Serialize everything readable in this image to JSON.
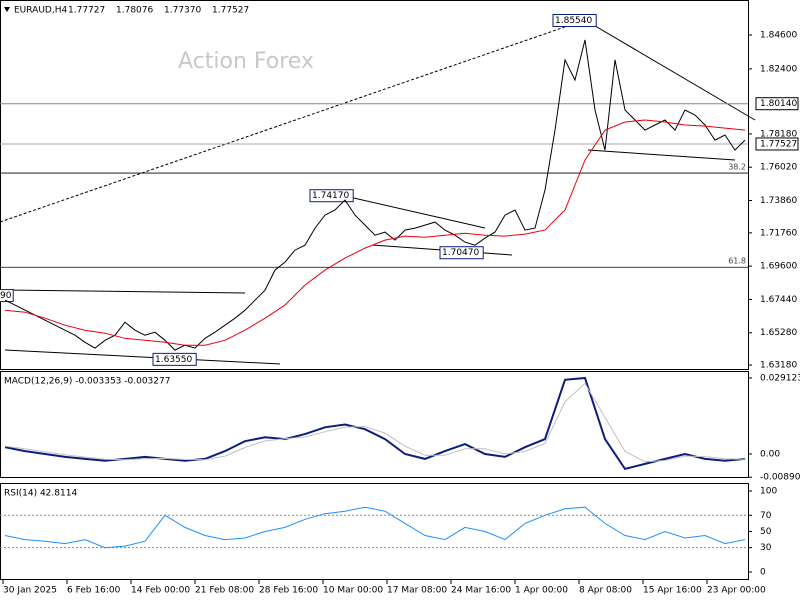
{
  "header": {
    "symbol": "EURAUD,H4",
    "ohlc": [
      "1.77727",
      "1.78076",
      "1.77370",
      "1.77527"
    ]
  },
  "watermark": "Action Forex",
  "x_axis": {
    "labels": [
      "30 Jan 2025",
      "6 Feb 16:00",
      "14 Feb 00:00",
      "21 Feb 08:00",
      "28 Feb 16:00",
      "10 Mar 00:00",
      "17 Mar 08:00",
      "24 Mar 16:00",
      "1 Apr 00:00",
      "8 Apr 08:00",
      "15 Apr 16:00",
      "23 Apr 00:00"
    ]
  },
  "chart_data": [
    {
      "type": "line",
      "ylim": [
        1.6286,
        1.8687
      ],
      "yticks": [
        {
          "value": 1.846,
          "label": "1.84600"
        },
        {
          "value": 1.824,
          "label": "1.82400"
        },
        {
          "value": 1.7818,
          "label": "1.78180"
        },
        {
          "value": 1.7602,
          "label": "1.76020"
        },
        {
          "value": 1.7386,
          "label": "1.73860"
        },
        {
          "value": 1.7176,
          "label": "1.71760"
        },
        {
          "value": 1.696,
          "label": "1.69600"
        },
        {
          "value": 1.6744,
          "label": "1.67440"
        },
        {
          "value": 1.6528,
          "label": "1.65280"
        },
        {
          "value": 1.6318,
          "label": "1.63180"
        }
      ],
      "price_lines": [
        {
          "value": 1.8014,
          "label": "1.80140",
          "color": "#888888"
        },
        {
          "value": 1.77527,
          "label": "1.77527",
          "color": "#aaaaaa"
        }
      ],
      "levels": [
        {
          "value": 1.7564,
          "label": "38.2"
        },
        {
          "value": 1.6953,
          "label": "61.8"
        }
      ],
      "annotations": [
        {
          "value": 1.8554,
          "label": "1.85540"
        },
        {
          "value": 1.7417,
          "label": "1.74170"
        },
        {
          "value": 1.7047,
          "label": "1.70470"
        },
        {
          "value": 1.6355,
          "label": "1.63550"
        },
        {
          "value": 1.6769,
          "label": "90"
        }
      ],
      "series": [
        {
          "color": "#000000",
          "values": [
            1.6739,
            1.6707,
            1.6674,
            1.6642,
            1.6609,
            1.6577,
            1.6544,
            1.6512,
            1.6466,
            1.6428,
            1.6479,
            1.6512,
            1.6596,
            1.6544,
            1.6512,
            1.6531,
            1.6479,
            1.6415,
            1.6447,
            1.6428,
            1.6492,
            1.6531,
            1.6577,
            1.6622,
            1.6674,
            1.6739,
            1.6804,
            1.6934,
            1.6986,
            1.7064,
            1.7096,
            1.7207,
            1.7291,
            1.7324,
            1.7389,
            1.7291,
            1.7226,
            1.7161,
            1.7181,
            1.7129,
            1.7194,
            1.7207,
            1.7226,
            1.7246,
            1.7194,
            1.7161,
            1.7116,
            1.7096,
            1.7142,
            1.7181,
            1.7291,
            1.7324,
            1.7194,
            1.7207,
            1.7454,
            1.7843,
            1.8298,
            1.8168,
            1.8428,
            1.7973,
            1.7713,
            1.8298,
            1.7973,
            1.7908,
            1.7843,
            1.7876,
            1.7908,
            1.7843,
            1.7973,
            1.7941,
            1.7876,
            1.7778,
            1.7811,
            1.7713,
            1.7778
          ]
        },
        {
          "color": "#e8000b",
          "values": [
            1.6674,
            1.6661,
            1.6622,
            1.6577,
            1.6544,
            1.6525,
            1.6492,
            1.6479,
            1.6466,
            1.6447,
            1.6447,
            1.6479,
            1.6544,
            1.6622,
            1.6707,
            1.6837,
            1.6934,
            1.7012,
            1.7077,
            1.7129,
            1.7155,
            1.7148,
            1.7161,
            1.7174,
            1.7161,
            1.7155,
            1.7168,
            1.7194,
            1.7324,
            1.7648,
            1.7843,
            1.7895,
            1.7908,
            1.7895,
            1.7876,
            1.7869,
            1.7856,
            1.7843
          ]
        }
      ]
    },
    {
      "type": "line",
      "title": "MACD(12,26,9) -0.003353 -0.003277",
      "ylim": [
        -0.0092,
        0.0314
      ],
      "yticks": [
        0.029123,
        {
          "value": 0,
          "label": "0.00"
        },
        -0.008901
      ],
      "series": [
        {
          "color": "#0a1e7a",
          "values": [
            0.0026,
            0.0011,
            0,
            -0.0011,
            -0.0019,
            -0.0026,
            -0.0019,
            -0.0011,
            -0.0019,
            -0.0026,
            -0.0019,
            0.0011,
            0.0049,
            0.0064,
            0.0057,
            0.0076,
            0.0102,
            0.0113,
            0.0095,
            0.0057,
            0,
            -0.0019,
            0.0011,
            0.0038,
            0,
            -0.0011,
            0.0026,
            0.0057,
            0.0284,
            0.0291,
            0.0057,
            -0.0057,
            -0.0038,
            -0.0019,
            0,
            -0.0019,
            -0.0026,
            -0.0019
          ]
        },
        {
          "color": "#c0c0c0",
          "values": [
            0.003,
            0.002,
            0.0008,
            -0.0003,
            -0.0012,
            -0.002,
            -0.0022,
            -0.0018,
            -0.0017,
            -0.0021,
            -0.0022,
            -0.0008,
            0.0025,
            0.005,
            0.0058,
            0.0065,
            0.0085,
            0.0103,
            0.0105,
            0.008,
            0.003,
            -0.0005,
            -0.0005,
            0.002,
            0.002,
            0,
            0.001,
            0.004,
            0.02,
            0.027,
            0.014,
            0.001,
            -0.003,
            -0.0025,
            -0.0008,
            -0.001,
            -0.0018,
            -0.002
          ]
        }
      ]
    },
    {
      "type": "line",
      "title": "RSI(14) 42.8114",
      "ylim": [
        -9.9,
        108.6
      ],
      "yticks": [
        100,
        70,
        50,
        30,
        0
      ],
      "levels": [
        70,
        30
      ],
      "series": [
        {
          "color": "#1e90ff",
          "values": [
            45,
            40,
            38,
            35,
            40,
            30,
            32,
            38,
            70,
            55,
            45,
            40,
            42,
            50,
            55,
            65,
            72,
            75,
            80,
            75,
            60,
            45,
            40,
            55,
            50,
            40,
            60,
            70,
            78,
            80,
            60,
            45,
            40,
            50,
            42,
            45,
            35,
            40
          ]
        }
      ]
    }
  ]
}
